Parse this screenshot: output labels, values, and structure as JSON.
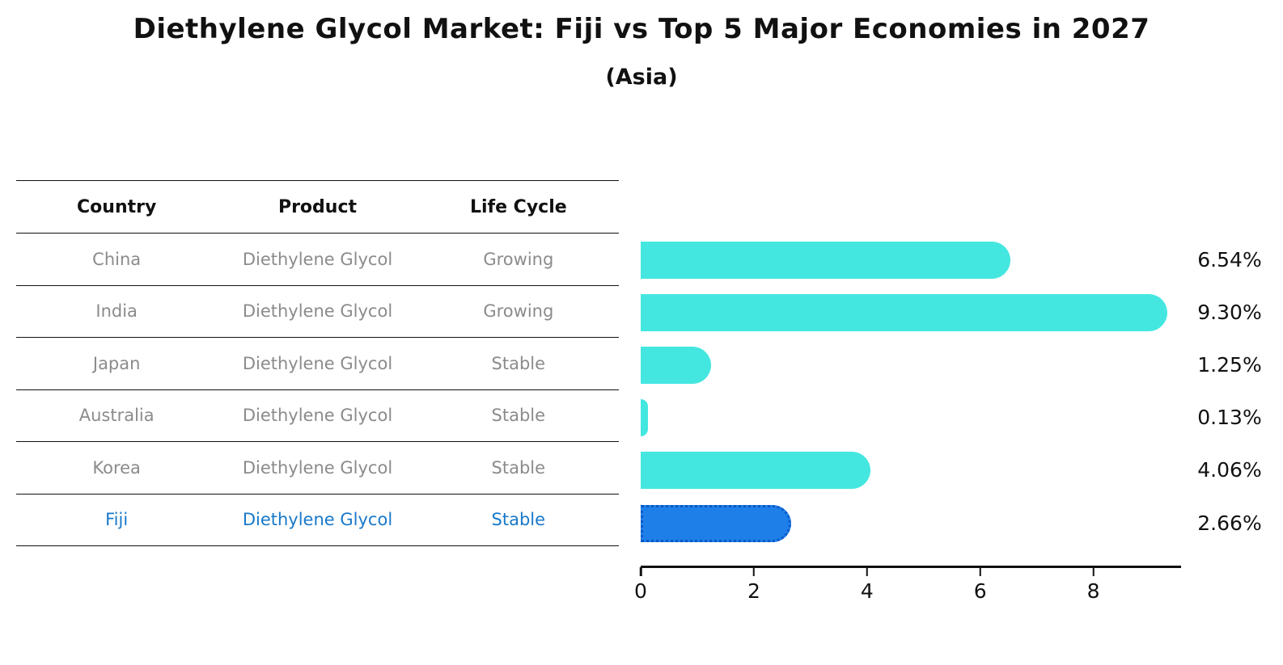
{
  "page": {
    "title": "Diethylene Glycol Market: Fiji vs Top 5 Major Economies in 2027",
    "subtitle": "(Asia)"
  },
  "table": {
    "headers": {
      "country": "Country",
      "product": "Product",
      "life_cycle": "Life Cycle"
    },
    "rows": [
      {
        "country": "China",
        "product": "Diethylene Glycol",
        "life_cycle": "Growing",
        "highlight": false
      },
      {
        "country": "India",
        "product": "Diethylene Glycol",
        "life_cycle": "Growing",
        "highlight": false
      },
      {
        "country": "Japan",
        "product": "Diethylene Glycol",
        "life_cycle": "Stable",
        "highlight": false
      },
      {
        "country": "Australia",
        "product": "Diethylene Glycol",
        "life_cycle": "Stable",
        "highlight": false
      },
      {
        "country": "Korea",
        "product": "Diethylene Glycol",
        "life_cycle": "Stable",
        "highlight": false
      },
      {
        "country": "Fiji",
        "product": "Diethylene Glycol",
        "life_cycle": "Stable",
        "highlight": true
      }
    ]
  },
  "chart_data": {
    "type": "bar",
    "orientation": "horizontal",
    "title": "Diethylene Glycol Market: Fiji vs Top 5 Major Economies in 2027",
    "subtitle": "(Asia)",
    "categories": [
      "China",
      "India",
      "Japan",
      "Australia",
      "Korea",
      "Fiji"
    ],
    "values": [
      6.54,
      9.3,
      1.25,
      0.13,
      4.06,
      2.66
    ],
    "value_labels": [
      "6.54%",
      "9.30%",
      "1.25%",
      "0.13%",
      "4.06%",
      "2.66%"
    ],
    "highlight_index": 5,
    "xticks": [
      0,
      2,
      4,
      6,
      8
    ],
    "xlim": [
      0,
      9.55
    ],
    "grid": false,
    "legend": false,
    "colors": {
      "bar": "#44E7E0",
      "highlight_bar": "#1E7FE8",
      "highlight_border": "#0A58C8",
      "value_label": "#111111",
      "table_text_muted": "#8B8B8B",
      "table_text_highlight": "#1878C8",
      "axis": "#111111"
    }
  }
}
